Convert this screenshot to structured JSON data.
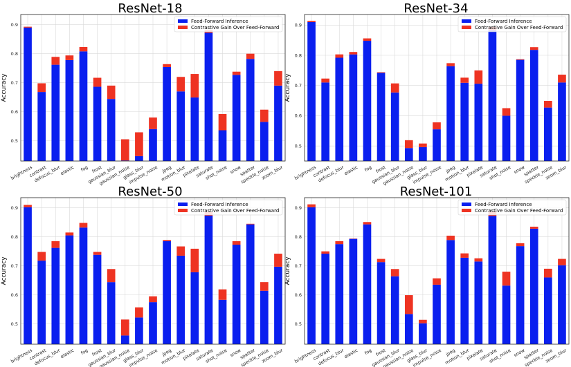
{
  "colors": {
    "base": "#0a1fef",
    "gain": "#ee3322",
    "grid": "#d9d9d9",
    "axis": "#222222"
  },
  "legend": {
    "base_label": "Feed-Forward Inference",
    "gain_label": "Contrastive Gain Over Feed-Forward"
  },
  "chart_data": [
    {
      "type": "bar",
      "title": "ResNet-18",
      "ylabel": "Accuracy",
      "ylim": [
        0.43,
        0.935
      ],
      "yticks": [
        0.5,
        0.6,
        0.7,
        0.8,
        0.9
      ],
      "categories": [
        "brightness",
        "contrast",
        "defocus_blur",
        "elastic",
        "fog",
        "frost",
        "gaussian_blur",
        "gaussian_noise",
        "glass_blur",
        "impulse_noise",
        "jpeg",
        "motion_blur",
        "pixelate",
        "saturate",
        "shot_noise",
        "snow",
        "spatter",
        "speckle_noise",
        "zoom_blur"
      ],
      "series": [
        {
          "name": "Feed-Forward Inference",
          "values": [
            0.89,
            0.668,
            0.762,
            0.778,
            0.808,
            0.686,
            0.644,
            0.432,
            0.447,
            0.54,
            0.754,
            0.67,
            0.649,
            0.872,
            0.536,
            0.727,
            0.782,
            0.565,
            0.69
          ]
        },
        {
          "name": "Contrastive Gain Over Feed-Forward",
          "values": [
            0.003,
            0.03,
            0.027,
            0.016,
            0.015,
            0.031,
            0.046,
            0.073,
            0.082,
            0.04,
            0.01,
            0.05,
            0.081,
            0.01,
            0.056,
            0.011,
            0.018,
            0.042,
            0.05
          ]
        }
      ]
    },
    {
      "type": "bar",
      "title": "ResNet-34",
      "ylabel": "Accuracy",
      "ylim": [
        0.45,
        0.935
      ],
      "yticks": [
        0.5,
        0.6,
        0.7,
        0.8,
        0.9
      ],
      "categories": [
        "brightness",
        "contrast",
        "defocus_blur",
        "elastic",
        "fog",
        "frost",
        "gaussian_blur",
        "gaussian_noise",
        "glass_blur",
        "impulse_noise",
        "jpeg",
        "motion_blur",
        "pixelate",
        "saturate",
        "shot_noise",
        "snow",
        "spatter",
        "speckle_noise",
        "zoom_blur"
      ],
      "series": [
        {
          "name": "Feed-Forward Inference",
          "values": [
            0.91,
            0.71,
            0.792,
            0.803,
            0.848,
            0.742,
            0.677,
            0.493,
            0.496,
            0.555,
            0.764,
            0.709,
            0.706,
            0.883,
            0.6,
            0.785,
            0.818,
            0.627,
            0.71
          ]
        },
        {
          "name": "Contrastive Gain Over Feed-Forward",
          "values": [
            0.004,
            0.013,
            0.011,
            0.008,
            0.008,
            0.002,
            0.03,
            0.026,
            0.012,
            0.023,
            0.01,
            0.017,
            0.044,
            0.011,
            0.025,
            0.002,
            0.009,
            0.022,
            0.026
          ]
        }
      ]
    },
    {
      "type": "bar",
      "title": "ResNet-50",
      "ylabel": "Accuracy",
      "ylim": [
        0.43,
        0.935
      ],
      "yticks": [
        0.5,
        0.6,
        0.7,
        0.8,
        0.9
      ],
      "categories": [
        "brightness",
        "contrast",
        "defocus_blur",
        "elastic",
        "fog",
        "frost",
        "gaussian_blur",
        "gaussian_noise",
        "glass_blur",
        "impulse_noise",
        "jpeg",
        "motion_blur",
        "pixelate",
        "saturate",
        "shot_noise",
        "snow",
        "spatter",
        "speckle_noise",
        "zoom_blur"
      ],
      "series": [
        {
          "name": "Feed-Forward Inference",
          "values": [
            0.902,
            0.718,
            0.762,
            0.805,
            0.832,
            0.738,
            0.644,
            0.46,
            0.522,
            0.575,
            0.785,
            0.735,
            0.678,
            0.873,
            0.583,
            0.773,
            0.843,
            0.614,
            0.697
          ]
        },
        {
          "name": "Contrastive Gain Over Feed-Forward",
          "values": [
            0.008,
            0.03,
            0.023,
            0.01,
            0.016,
            0.01,
            0.045,
            0.055,
            0.035,
            0.02,
            0.004,
            0.032,
            0.081,
            0.012,
            0.036,
            0.012,
            0.002,
            0.03,
            0.045
          ]
        }
      ]
    },
    {
      "type": "bar",
      "title": "ResNet-101",
      "ylabel": "Accuracy",
      "ylim": [
        0.43,
        0.935
      ],
      "yticks": [
        0.5,
        0.6,
        0.7,
        0.8,
        0.9
      ],
      "categories": [
        "brightness",
        "contrast",
        "defocus_blur",
        "elastic",
        "fog",
        "frost",
        "gaussian_blur",
        "gaussian_noise",
        "glass_blur",
        "impulse_noise",
        "jpeg",
        "motion_blur",
        "pixelate",
        "saturate",
        "shot_noise",
        "snow",
        "spatter",
        "speckle_noise",
        "zoom_blur"
      ],
      "series": [
        {
          "name": "Feed-Forward Inference",
          "values": [
            0.902,
            0.742,
            0.775,
            0.793,
            0.843,
            0.713,
            0.664,
            0.534,
            0.502,
            0.635,
            0.789,
            0.728,
            0.715,
            0.872,
            0.632,
            0.768,
            0.828,
            0.66,
            0.702
          ]
        },
        {
          "name": "Contrastive Gain Over Feed-Forward",
          "values": [
            0.01,
            0.008,
            0.01,
            0.001,
            0.008,
            0.011,
            0.025,
            0.065,
            0.012,
            0.022,
            0.015,
            0.015,
            0.011,
            0.016,
            0.048,
            0.01,
            0.007,
            0.03,
            0.022
          ]
        }
      ]
    }
  ]
}
